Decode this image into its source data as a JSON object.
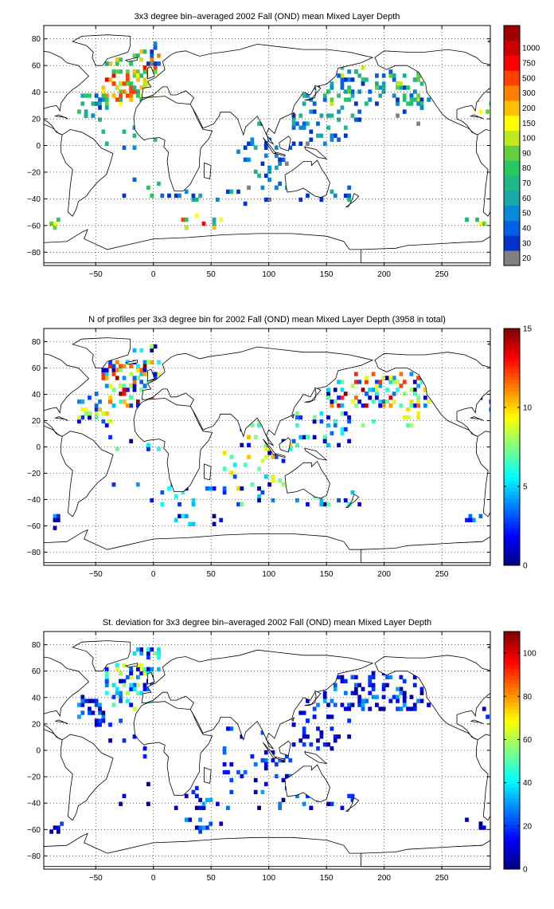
{
  "chart_data": [
    {
      "type": "heatmap",
      "title": "3x3 degree bin–averaged 2002 Fall (OND) mean Mixed Layer Depth",
      "xlabel": "",
      "ylabel": "",
      "xlim": [
        -95,
        292
      ],
      "ylim": [
        -90,
        90
      ],
      "xticks": [
        -50,
        0,
        50,
        100,
        150,
        200,
        250
      ],
      "yticks": [
        80,
        60,
        40,
        20,
        0,
        -20,
        -40,
        -60,
        -80
      ],
      "grid": true,
      "colorbar": {
        "scale": "categorical",
        "labels": [
          "20",
          "30",
          "40",
          "50",
          "60",
          "70",
          "80",
          "90",
          "100",
          "150",
          "200",
          "300",
          "500",
          "750",
          "1000"
        ],
        "colors": [
          "#808080",
          "#0033cc",
          "#0060e6",
          "#0a8ad6",
          "#18a8a8",
          "#20b888",
          "#28c860",
          "#60d040",
          "#c0e820",
          "#ffff00",
          "#ffc000",
          "#ff8000",
          "#ff4000",
          "#ff0000",
          "#cc0000",
          "#a00000"
        ]
      },
      "clusters": [
        {
          "lon": [
            -45,
            0
          ],
          "lat": [
            32,
            65
          ],
          "n": 75,
          "v": [
            0.25,
            0.85
          ]
        },
        {
          "lon": [
            -65,
            -40
          ],
          "lat": [
            20,
            40
          ],
          "n": 25,
          "v": [
            0.1,
            0.5
          ]
        },
        {
          "lon": [
            -20,
            5
          ],
          "lat": [
            35,
            75
          ],
          "n": 25,
          "v": [
            0.3,
            0.8
          ]
        },
        {
          "lon": [
            -5,
            5
          ],
          "lat": [
            60,
            80
          ],
          "n": 8,
          "v": [
            0.05,
            0.3
          ]
        },
        {
          "lon": [
            -45,
            15
          ],
          "lat": [
            -5,
            25
          ],
          "n": 12,
          "v": [
            0.05,
            0.4
          ]
        },
        {
          "lon": [
            130,
            240
          ],
          "lat": [
            30,
            58
          ],
          "n": 110,
          "v": [
            0.08,
            0.55
          ]
        },
        {
          "lon": [
            120,
            175
          ],
          "lat": [
            0,
            30
          ],
          "n": 35,
          "v": [
            0.05,
            0.35
          ]
        },
        {
          "lon": [
            170,
            240
          ],
          "lat": [
            15,
            35
          ],
          "n": 12,
          "v": [
            0.05,
            0.3
          ]
        },
        {
          "lon": [
            70,
            100
          ],
          "lat": [
            -35,
            20
          ],
          "n": 18,
          "v": [
            0.05,
            0.35
          ]
        },
        {
          "lon": [
            95,
            120
          ],
          "lat": [
            -30,
            5
          ],
          "n": 16,
          "v": [
            0.02,
            0.3
          ]
        },
        {
          "lon": [
            20,
            180
          ],
          "lat": [
            -45,
            -30
          ],
          "n": 32,
          "v": [
            0.05,
            0.35
          ]
        },
        {
          "lon": [
            -40,
            40
          ],
          "lat": [
            -45,
            -25
          ],
          "n": 10,
          "v": [
            0.05,
            0.4
          ]
        },
        {
          "lon": [
            25,
            60
          ],
          "lat": [
            -62,
            -52
          ],
          "n": 10,
          "v": [
            0.3,
            0.85
          ]
        },
        {
          "lon": [
            -90,
            -80
          ],
          "lat": [
            -62,
            -52
          ],
          "n": 5,
          "v": [
            0.3,
            0.6
          ]
        },
        {
          "lon": [
            270,
            290
          ],
          "lat": [
            -60,
            -52
          ],
          "n": 5,
          "v": [
            0.3,
            0.6
          ]
        },
        {
          "lon": [
            270,
            292
          ],
          "lat": [
            25,
            45
          ],
          "n": 6,
          "v": [
            0.2,
            0.6
          ]
        }
      ]
    },
    {
      "type": "heatmap",
      "title": "N of profiles per 3x3 degree bin for 2002 Fall (OND) mean Mixed Layer Depth  (3958 in total)",
      "xlabel": "",
      "ylabel": "",
      "xlim": [
        -95,
        292
      ],
      "ylim": [
        -90,
        90
      ],
      "xticks": [
        -50,
        0,
        50,
        100,
        150,
        200,
        250
      ],
      "yticks": [
        80,
        60,
        40,
        20,
        0,
        -20,
        -40,
        -60,
        -80
      ],
      "grid": true,
      "colorbar": {
        "scale": "continuous",
        "min": 0,
        "max": 15,
        "ticks": [
          0,
          5,
          10,
          15
        ]
      },
      "clusters": [
        {
          "lon": [
            -45,
            0
          ],
          "lat": [
            32,
            65
          ],
          "n": 85,
          "v": [
            0.0,
            1.0
          ]
        },
        {
          "lon": [
            -65,
            -40
          ],
          "lat": [
            20,
            40
          ],
          "n": 25,
          "v": [
            0.0,
            0.7
          ]
        },
        {
          "lon": [
            -20,
            5
          ],
          "lat": [
            40,
            78
          ],
          "n": 22,
          "v": [
            0.0,
            0.8
          ]
        },
        {
          "lon": [
            -45,
            15
          ],
          "lat": [
            -5,
            25
          ],
          "n": 12,
          "v": [
            0.0,
            0.6
          ]
        },
        {
          "lon": [
            150,
            240
          ],
          "lat": [
            30,
            55
          ],
          "n": 95,
          "v": [
            0.0,
            1.0
          ]
        },
        {
          "lon": [
            120,
            175
          ],
          "lat": [
            0,
            30
          ],
          "n": 35,
          "v": [
            0.0,
            0.5
          ]
        },
        {
          "lon": [
            170,
            240
          ],
          "lat": [
            15,
            35
          ],
          "n": 14,
          "v": [
            0.4,
            0.7
          ]
        },
        {
          "lon": [
            60,
            100
          ],
          "lat": [
            -35,
            20
          ],
          "n": 25,
          "v": [
            0.0,
            0.7
          ]
        },
        {
          "lon": [
            95,
            120
          ],
          "lat": [
            -30,
            5
          ],
          "n": 16,
          "v": [
            0.0,
            0.7
          ]
        },
        {
          "lon": [
            20,
            180
          ],
          "lat": [
            -45,
            -30
          ],
          "n": 30,
          "v": [
            0.0,
            0.5
          ]
        },
        {
          "lon": [
            -40,
            40
          ],
          "lat": [
            -45,
            -25
          ],
          "n": 10,
          "v": [
            0.0,
            0.4
          ]
        },
        {
          "lon": [
            20,
            60
          ],
          "lat": [
            -62,
            -52
          ],
          "n": 10,
          "v": [
            0.0,
            0.4
          ]
        },
        {
          "lon": [
            -90,
            -80
          ],
          "lat": [
            -62,
            -52
          ],
          "n": 5,
          "v": [
            0.0,
            0.3
          ]
        },
        {
          "lon": [
            270,
            290
          ],
          "lat": [
            -60,
            -52
          ],
          "n": 5,
          "v": [
            0.0,
            0.3
          ]
        },
        {
          "lon": [
            270,
            292
          ],
          "lat": [
            25,
            45
          ],
          "n": 6,
          "v": [
            0.0,
            0.4
          ]
        }
      ]
    },
    {
      "type": "heatmap",
      "title": "St. deviation for 3x3 degree bin–averaged 2002 Fall (OND) mean Mixed Layer Depth",
      "xlabel": "",
      "ylabel": "",
      "xlim": [
        -95,
        292
      ],
      "ylim": [
        -90,
        90
      ],
      "xticks": [
        -50,
        0,
        50,
        100,
        150,
        200,
        250
      ],
      "yticks": [
        80,
        60,
        40,
        20,
        0,
        -20,
        -40,
        -60,
        -80
      ],
      "grid": true,
      "colorbar": {
        "scale": "continuous",
        "min": 0,
        "max": 110,
        "ticks": [
          0,
          20,
          40,
          60,
          80,
          100
        ]
      },
      "clusters": [
        {
          "lon": [
            -45,
            0
          ],
          "lat": [
            32,
            65
          ],
          "n": 75,
          "v": [
            0.05,
            0.65
          ]
        },
        {
          "lon": [
            -65,
            -40
          ],
          "lat": [
            20,
            40
          ],
          "n": 25,
          "v": [
            0.0,
            0.3
          ]
        },
        {
          "lon": [
            -20,
            5
          ],
          "lat": [
            40,
            78
          ],
          "n": 22,
          "v": [
            0.05,
            0.5
          ]
        },
        {
          "lon": [
            -45,
            15
          ],
          "lat": [
            -5,
            25
          ],
          "n": 12,
          "v": [
            0.0,
            0.2
          ]
        },
        {
          "lon": [
            130,
            240
          ],
          "lat": [
            30,
            58
          ],
          "n": 110,
          "v": [
            0.0,
            0.3
          ]
        },
        {
          "lon": [
            120,
            175
          ],
          "lat": [
            0,
            30
          ],
          "n": 35,
          "v": [
            0.0,
            0.2
          ]
        },
        {
          "lon": [
            60,
            100
          ],
          "lat": [
            -35,
            20
          ],
          "n": 22,
          "v": [
            0.0,
            0.25
          ]
        },
        {
          "lon": [
            95,
            120
          ],
          "lat": [
            -30,
            5
          ],
          "n": 16,
          "v": [
            0.0,
            0.3
          ]
        },
        {
          "lon": [
            20,
            180
          ],
          "lat": [
            -45,
            -30
          ],
          "n": 30,
          "v": [
            0.0,
            0.3
          ]
        },
        {
          "lon": [
            -40,
            40
          ],
          "lat": [
            -45,
            -25
          ],
          "n": 10,
          "v": [
            0.0,
            0.2
          ]
        },
        {
          "lon": [
            20,
            60
          ],
          "lat": [
            -62,
            -52
          ],
          "n": 10,
          "v": [
            0.05,
            0.3
          ]
        },
        {
          "lon": [
            -90,
            -80
          ],
          "lat": [
            -62,
            -52
          ],
          "n": 5,
          "v": [
            0.0,
            0.2
          ]
        },
        {
          "lon": [
            270,
            290
          ],
          "lat": [
            -60,
            -52
          ],
          "n": 5,
          "v": [
            0.0,
            0.2
          ]
        },
        {
          "lon": [
            270,
            292
          ],
          "lat": [
            25,
            45
          ],
          "n": 6,
          "v": [
            0.0,
            0.2
          ]
        }
      ]
    }
  ]
}
